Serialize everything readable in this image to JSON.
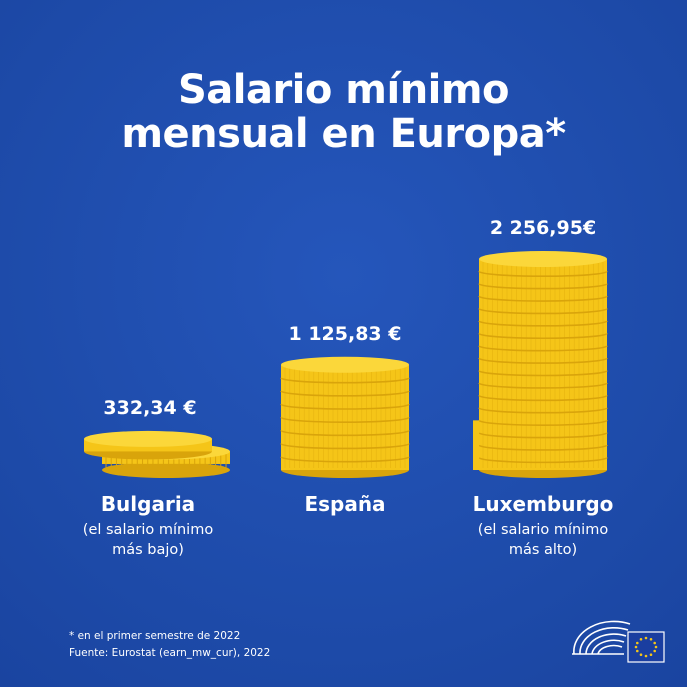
{
  "title": {
    "line1": "Salario mínimo",
    "line2": "mensual en Europa*"
  },
  "chart_data": {
    "type": "bar",
    "categories": [
      "Bulgaria",
      "España",
      "Luxemburgo"
    ],
    "values": [
      332.34,
      1125.83,
      2256.95
    ],
    "value_labels": [
      "332,34 €",
      "1 125,83 €",
      "2 256,95€"
    ],
    "notes": [
      "(el salario mínimo\nmás bajo)",
      "",
      "(el salario mínimo\nmás alto)"
    ],
    "unit": "€"
  },
  "footnote": {
    "line1": "* en el primer semestre de 2022",
    "line2": "Fuente: Eurostat (earn_mw_cur), 2022"
  },
  "colors": {
    "background": "#1f4fb0",
    "coin": "#f5c518",
    "coin_dark": "#d9a40b",
    "coin_top": "#fbd73a",
    "text": "#ffffff"
  },
  "icons": {
    "logo": "european-parliament-logo-icon"
  }
}
